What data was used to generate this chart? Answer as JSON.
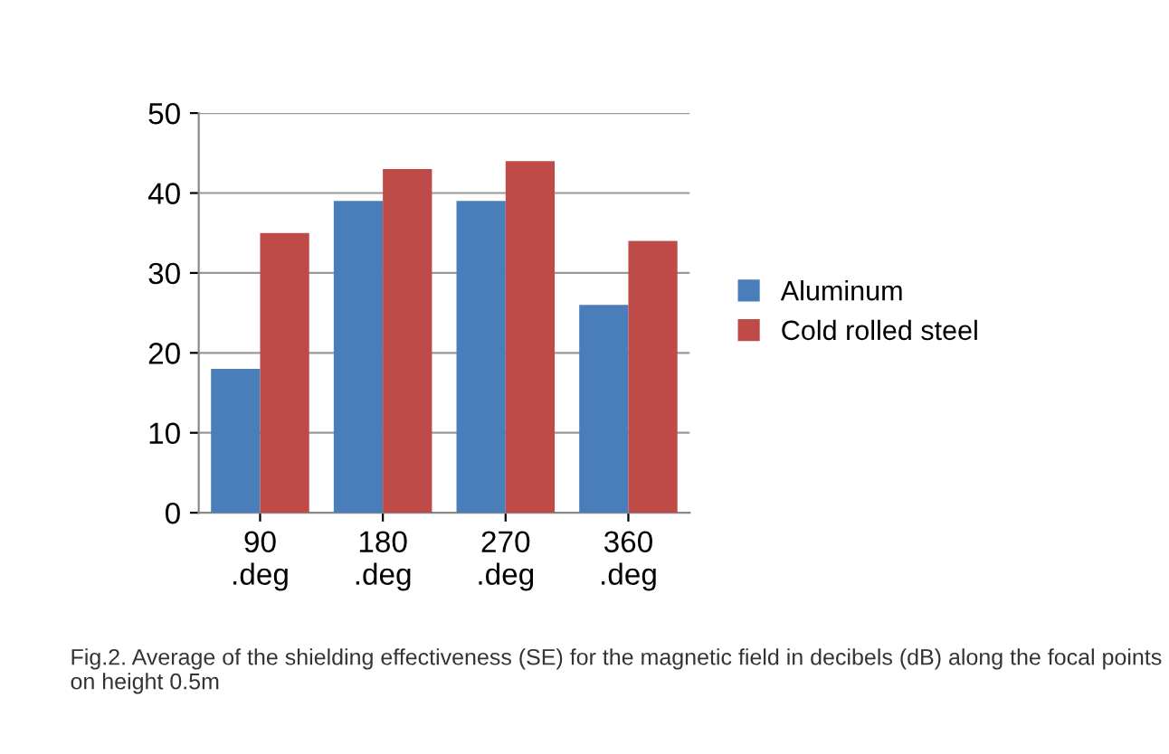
{
  "chart_data": {
    "type": "bar",
    "categories": [
      "90\n.deg",
      "180\n.deg",
      "270\n.deg",
      "360\n.deg"
    ],
    "series": [
      {
        "name": "Aluminum",
        "color": "#4a7ebb",
        "values": [
          18,
          39,
          39,
          26
        ]
      },
      {
        "name": "Cold rolled steel",
        "color": "#be4b48",
        "values": [
          35,
          43,
          44,
          34
        ]
      }
    ],
    "ylim": [
      0,
      50
    ],
    "yticks": [
      0,
      10,
      20,
      30,
      40,
      50
    ],
    "grid": "y",
    "legend": "right",
    "annotations": [
      "Fig.2. Average of the shielding effectiveness (SE) for the magnetic field in decibels (dB) along the focal points on height 0.5m"
    ]
  }
}
